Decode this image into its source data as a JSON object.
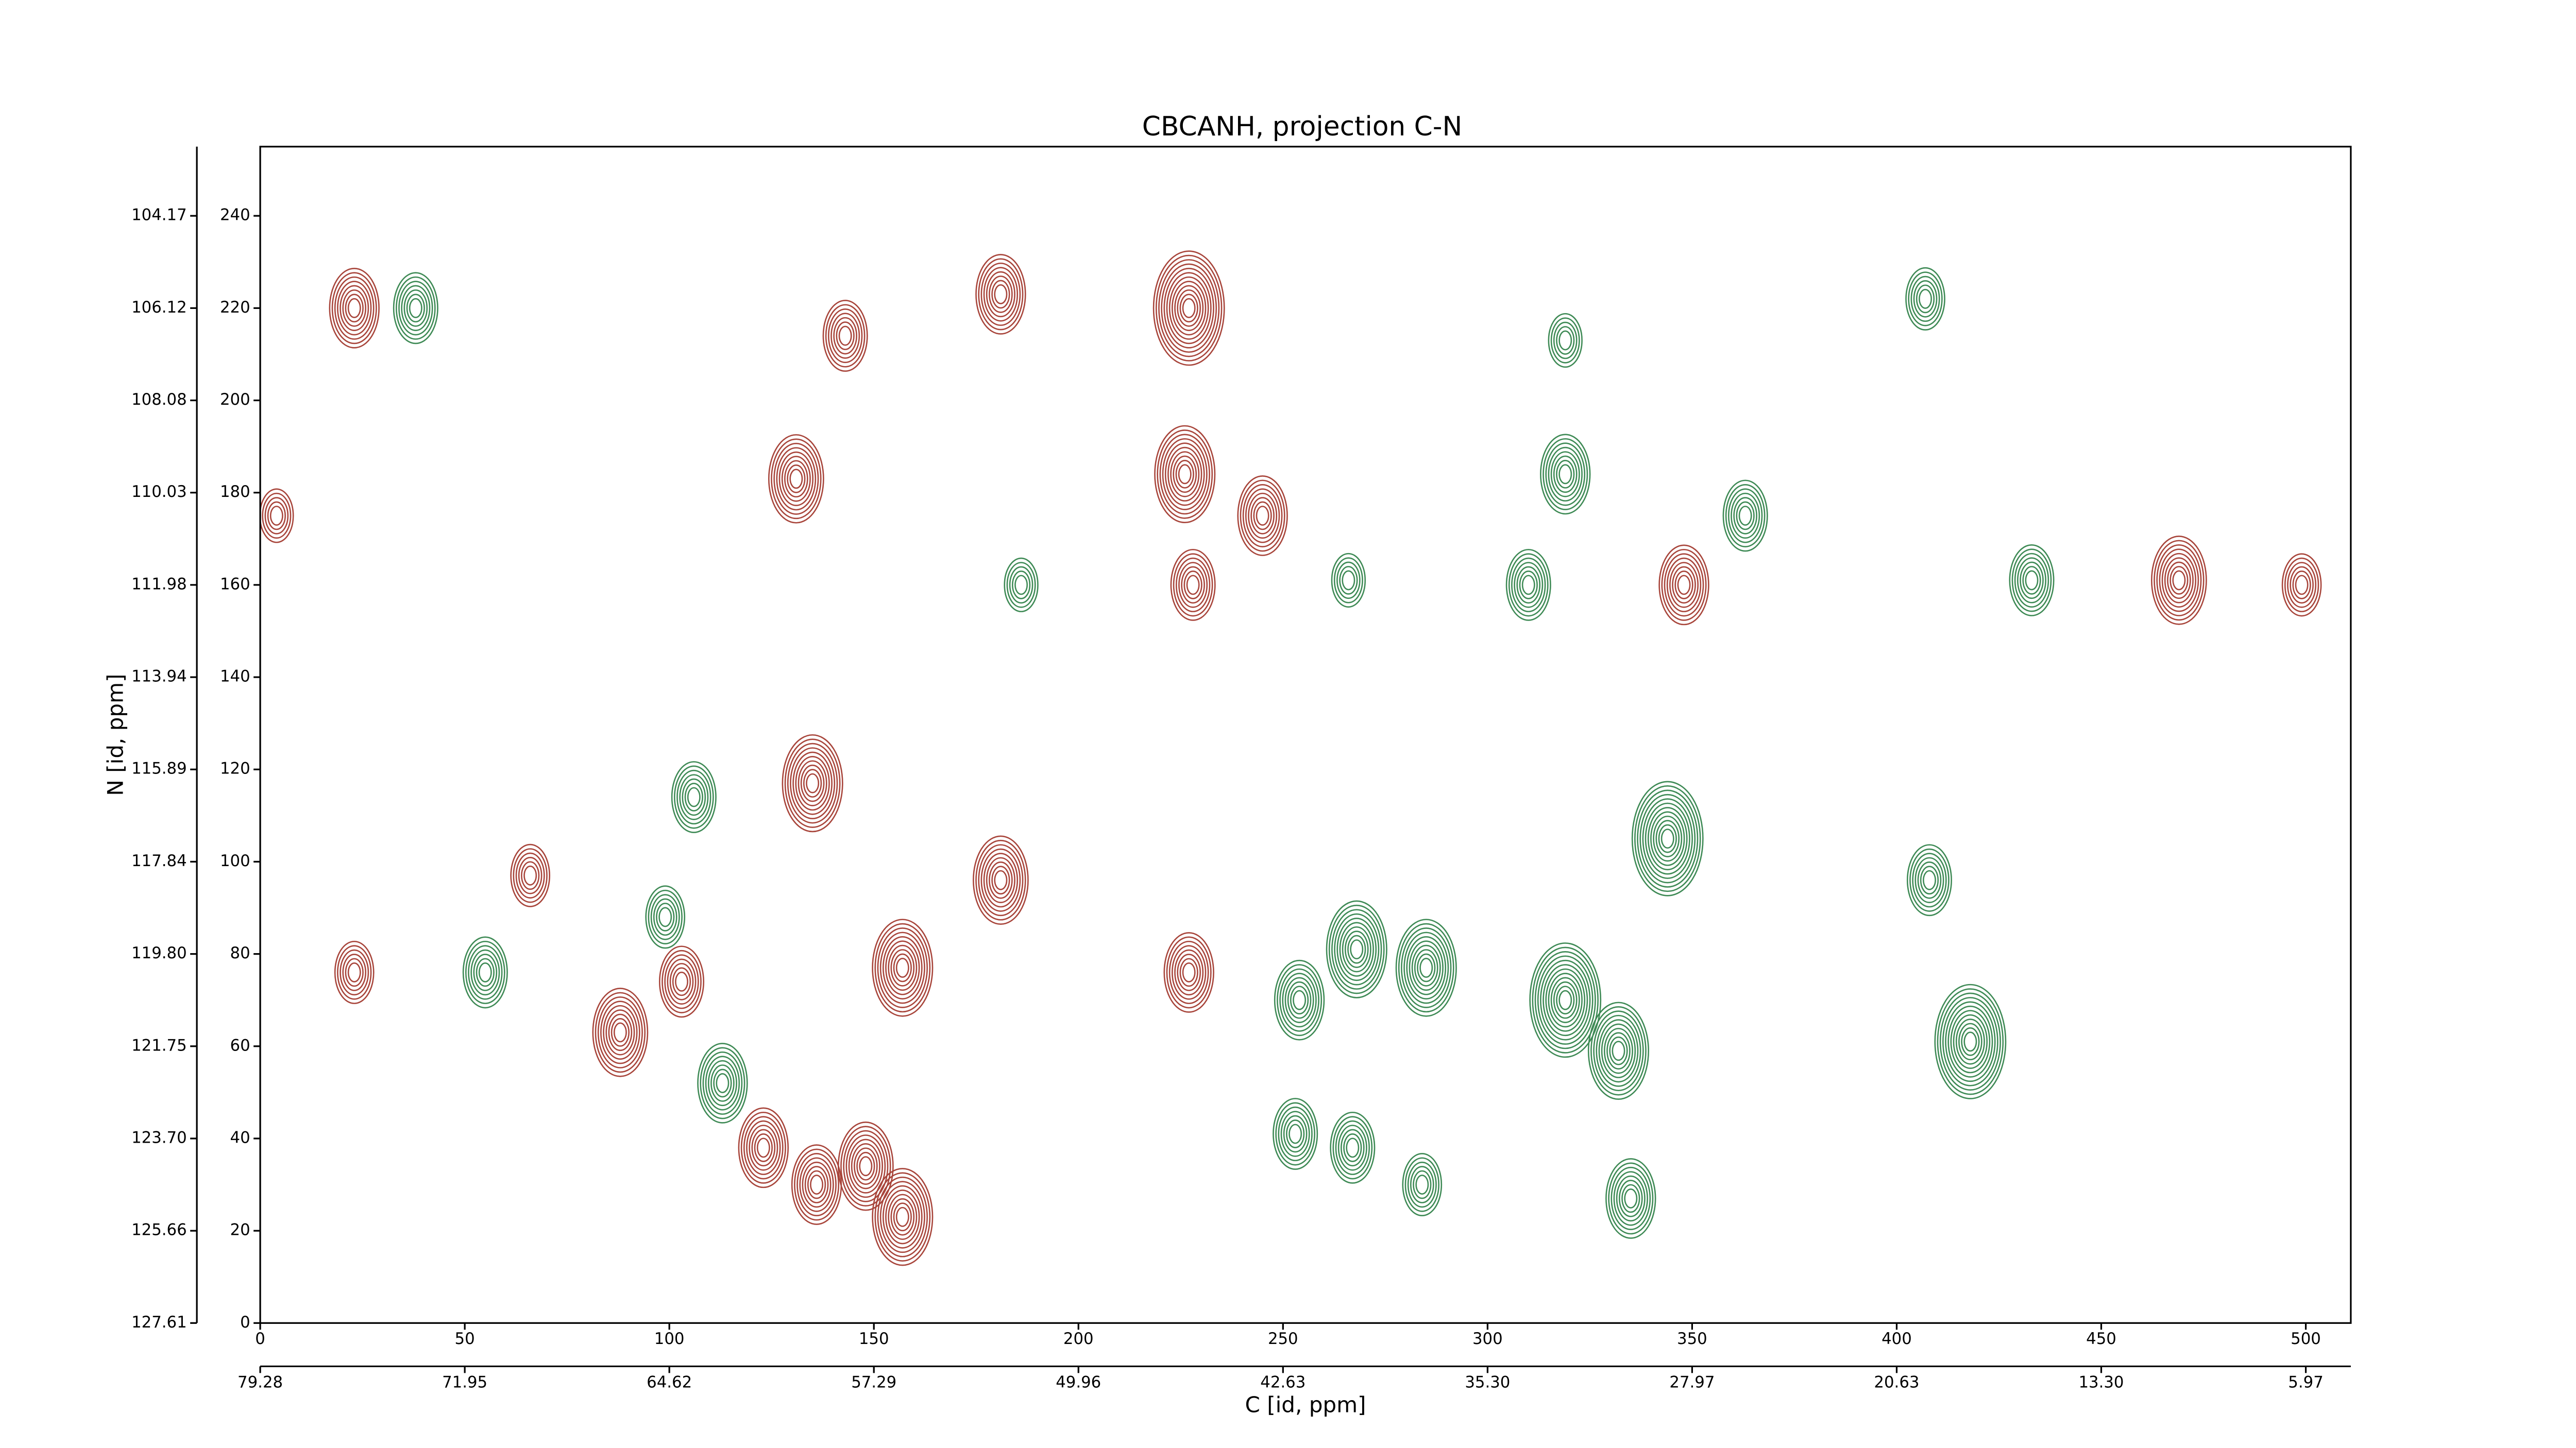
{
  "chart_data": {
    "type": "contour",
    "title": "CBCANH, projection C-N",
    "xlabel": "C [id, ppm]",
    "ylabel": "N [id, ppm]",
    "xlim": [
      0,
      511
    ],
    "ylim": [
      0,
      255
    ],
    "xticks": [
      0,
      50,
      100,
      150,
      200,
      250,
      300,
      350,
      400,
      450,
      500
    ],
    "yticks": [
      0,
      20,
      40,
      60,
      80,
      100,
      120,
      140,
      160,
      180,
      200,
      220,
      240
    ],
    "x2ticks": [
      {
        "value": 0,
        "label": "79.28"
      },
      {
        "value": 50,
        "label": "71.95"
      },
      {
        "value": 100,
        "label": "64.62"
      },
      {
        "value": 150,
        "label": "57.29"
      },
      {
        "value": 200,
        "label": "49.96"
      },
      {
        "value": 250,
        "label": "42.63"
      },
      {
        "value": 300,
        "label": "35.30"
      },
      {
        "value": 350,
        "label": "27.97"
      },
      {
        "value": 400,
        "label": "20.63"
      },
      {
        "value": 450,
        "label": "13.30"
      },
      {
        "value": 500,
        "label": "5.97"
      }
    ],
    "y2ticks": [
      {
        "value": 0,
        "label": "127.61"
      },
      {
        "value": 20,
        "label": "125.66"
      },
      {
        "value": 40,
        "label": "123.70"
      },
      {
        "value": 60,
        "label": "121.75"
      },
      {
        "value": 80,
        "label": "119.80"
      },
      {
        "value": 100,
        "label": "117.84"
      },
      {
        "value": 120,
        "label": "115.89"
      },
      {
        "value": 140,
        "label": "113.94"
      },
      {
        "value": 160,
        "label": "111.98"
      },
      {
        "value": 180,
        "label": "110.03"
      },
      {
        "value": 200,
        "label": "108.08"
      },
      {
        "value": 220,
        "label": "106.12"
      },
      {
        "value": 240,
        "label": "104.17"
      }
    ],
    "series": [
      {
        "color": "#a8453b",
        "x": [
          23,
          143,
          181,
          227,
          131,
          226,
          245,
          348,
          469,
          181,
          135,
          148,
          157,
          123,
          136,
          227,
          88,
          103,
          23,
          66,
          4,
          228,
          499,
          157
        ],
        "y": [
          220,
          214,
          223,
          220,
          183,
          184,
          175,
          160,
          161,
          96,
          117,
          34,
          23,
          38,
          30,
          76,
          63,
          74,
          76,
          97,
          175,
          160,
          160,
          77
        ],
        "levels": [
          8,
          7,
          8,
          12,
          9,
          10,
          8,
          8,
          9,
          9,
          10,
          9,
          10,
          8,
          8,
          8,
          9,
          7,
          6,
          6,
          5,
          7,
          6,
          10
        ]
      },
      {
        "color": "#3e8a55",
        "x": [
          38,
          319,
          407,
          319,
          363,
          310,
          433,
          186,
          266,
          106,
          408,
          418,
          344,
          319,
          335,
          268,
          285,
          254,
          267,
          253,
          284,
          55,
          99,
          113,
          332
        ],
        "y": [
          220,
          213,
          222,
          184,
          175,
          160,
          161,
          160,
          161,
          114,
          96,
          61,
          105,
          70,
          27,
          81,
          77,
          70,
          38,
          41,
          30,
          76,
          88,
          52,
          59
        ],
        "levels": [
          7,
          5,
          6,
          8,
          7,
          7,
          7,
          5,
          5,
          7,
          7,
          12,
          12,
          12,
          8,
          10,
          10,
          8,
          7,
          7,
          6,
          7,
          6,
          8,
          10
        ]
      }
    ]
  }
}
